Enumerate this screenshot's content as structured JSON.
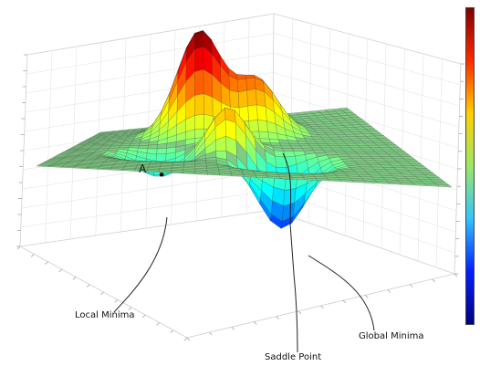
{
  "annotations": {
    "point_a": "A",
    "local_minima": "Local Minima",
    "saddle_point": "Saddle Point",
    "global_minima": "Global Minima"
  },
  "surface": {
    "colormap": "jet",
    "plane_color": "#7fcc84",
    "mesh_color": "#2b2b2b"
  },
  "colorbar": {
    "colors": [
      "#7f0000",
      "#ff2a00",
      "#ffd000",
      "#9be864",
      "#33c3ff",
      "#0020ff",
      "#00007f"
    ]
  }
}
